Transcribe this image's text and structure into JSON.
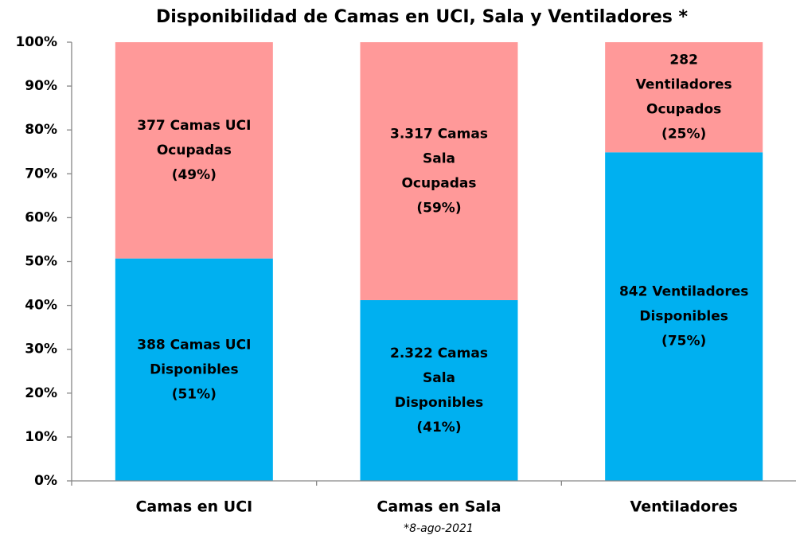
{
  "chart_data": {
    "type": "stacked_bar_100",
    "title": "Disponibilidad de Camas en UCI, Sala y Ventiladores *",
    "note": "*8-ago-2021",
    "categories": [
      "Camas en UCI",
      "Camas en Sala",
      "Ventiladores"
    ],
    "series": [
      {
        "color": "#00b0f0",
        "values": [
          50.7,
          41.2,
          74.9
        ],
        "value_labels": [
          [
            "388 Camas UCI",
            "Disponibles",
            "(51%)"
          ],
          [
            "2.322 Camas",
            "Sala",
            "Disponibles",
            "(41%)"
          ],
          [
            "842 Ventiladores",
            "Disponibles",
            "(75%)"
          ]
        ]
      },
      {
        "color": "#ff9999",
        "values": [
          49.3,
          58.8,
          25.1
        ],
        "value_labels": [
          [
            "377 Camas UCI",
            "Ocupadas",
            "(49%)"
          ],
          [
            "3.317 Camas",
            "Sala",
            "Ocupadas",
            "(59%)"
          ],
          [
            "282",
            "Ventiladores",
            "Ocupados",
            "(25%)"
          ]
        ]
      }
    ],
    "ylim": [
      0,
      100
    ],
    "yticks": [
      {
        "value": 0,
        "label": "0%"
      },
      {
        "value": 10,
        "label": "10%"
      },
      {
        "value": 20,
        "label": "20%"
      },
      {
        "value": 30,
        "label": "30%"
      },
      {
        "value": 40,
        "label": "40%"
      },
      {
        "value": 50,
        "label": "50%"
      },
      {
        "value": 60,
        "label": "60%"
      },
      {
        "value": 70,
        "label": "70%"
      },
      {
        "value": 80,
        "label": "80%"
      },
      {
        "value": 90,
        "label": "90%"
      },
      {
        "value": 100,
        "label": "100%"
      }
    ]
  }
}
